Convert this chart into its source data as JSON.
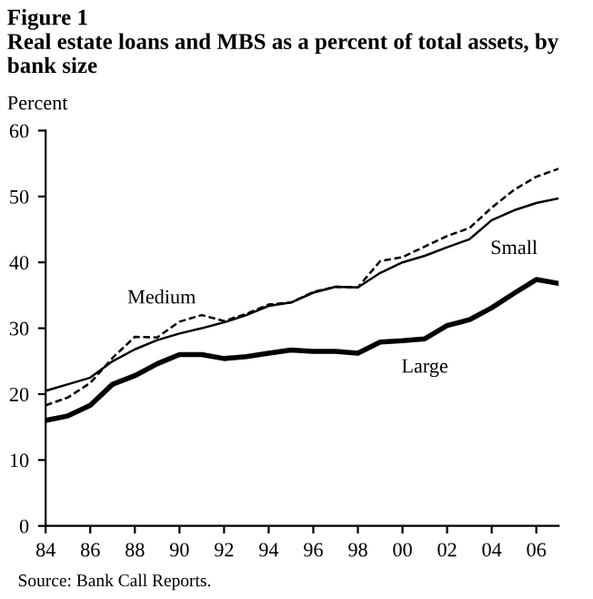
{
  "chart_data": {
    "type": "line",
    "title": "Figure 1",
    "subtitle": "Real estate loans and MBS as a percent of total assets, by bank size",
    "ylabel": "Percent",
    "x": [
      1984,
      1985,
      1986,
      1987,
      1988,
      1989,
      1990,
      1991,
      1992,
      1993,
      1994,
      1995,
      1996,
      1997,
      1998,
      1999,
      2000,
      2001,
      2002,
      2003,
      2004,
      2005,
      2006,
      2007
    ],
    "series": [
      {
        "name": "Small",
        "color": "#000000",
        "line_style": "solid",
        "values": [
          20.5,
          21.5,
          22.5,
          25,
          26.8,
          28.2,
          29.2,
          30,
          30.9,
          32,
          33.4,
          33.9,
          35.4,
          36.3,
          36.2,
          38.4,
          40,
          41,
          42.3,
          43.5,
          46.4,
          47.9,
          49,
          49.7
        ]
      },
      {
        "name": "Medium",
        "color": "#000000",
        "line_style": "dashed",
        "values": [
          18.3,
          19.5,
          21.7,
          25.5,
          28.7,
          28.6,
          31,
          32,
          31.1,
          32.2,
          33.6,
          33.9,
          35.5,
          36.3,
          36.2,
          40.2,
          40.8,
          42.4,
          44,
          45.2,
          48.3,
          51,
          53,
          54.2
        ]
      },
      {
        "name": "Large",
        "color": "#000000",
        "line_style": "solid",
        "values": [
          16,
          16.7,
          18.3,
          21.5,
          22.8,
          24.6,
          26,
          26,
          25.4,
          25.7,
          26.2,
          26.7,
          26.5,
          26.5,
          26.2,
          27.9,
          28.1,
          28.4,
          30.4,
          31.3,
          33.1,
          35.3,
          37.4,
          36.8
        ]
      }
    ],
    "xlim": [
      1984,
      2007
    ],
    "xticks": [
      {
        "value": 1984,
        "label": "84"
      },
      {
        "value": 1986,
        "label": "86"
      },
      {
        "value": 1988,
        "label": "88"
      },
      {
        "value": 1990,
        "label": "90"
      },
      {
        "value": 1992,
        "label": "92"
      },
      {
        "value": 1994,
        "label": "94"
      },
      {
        "value": 1996,
        "label": "96"
      },
      {
        "value": 1998,
        "label": "98"
      },
      {
        "value": 2000,
        "label": "00"
      },
      {
        "value": 2002,
        "label": "02"
      },
      {
        "value": 2004,
        "label": "04"
      },
      {
        "value": 2006,
        "label": "06"
      }
    ],
    "ylim": [
      0,
      60
    ],
    "yticks": [
      0,
      10,
      20,
      30,
      40,
      50,
      60
    ],
    "grid": false,
    "legend": false,
    "marker": "none",
    "annotations": [
      "Source: Bank Call Reports."
    ]
  }
}
